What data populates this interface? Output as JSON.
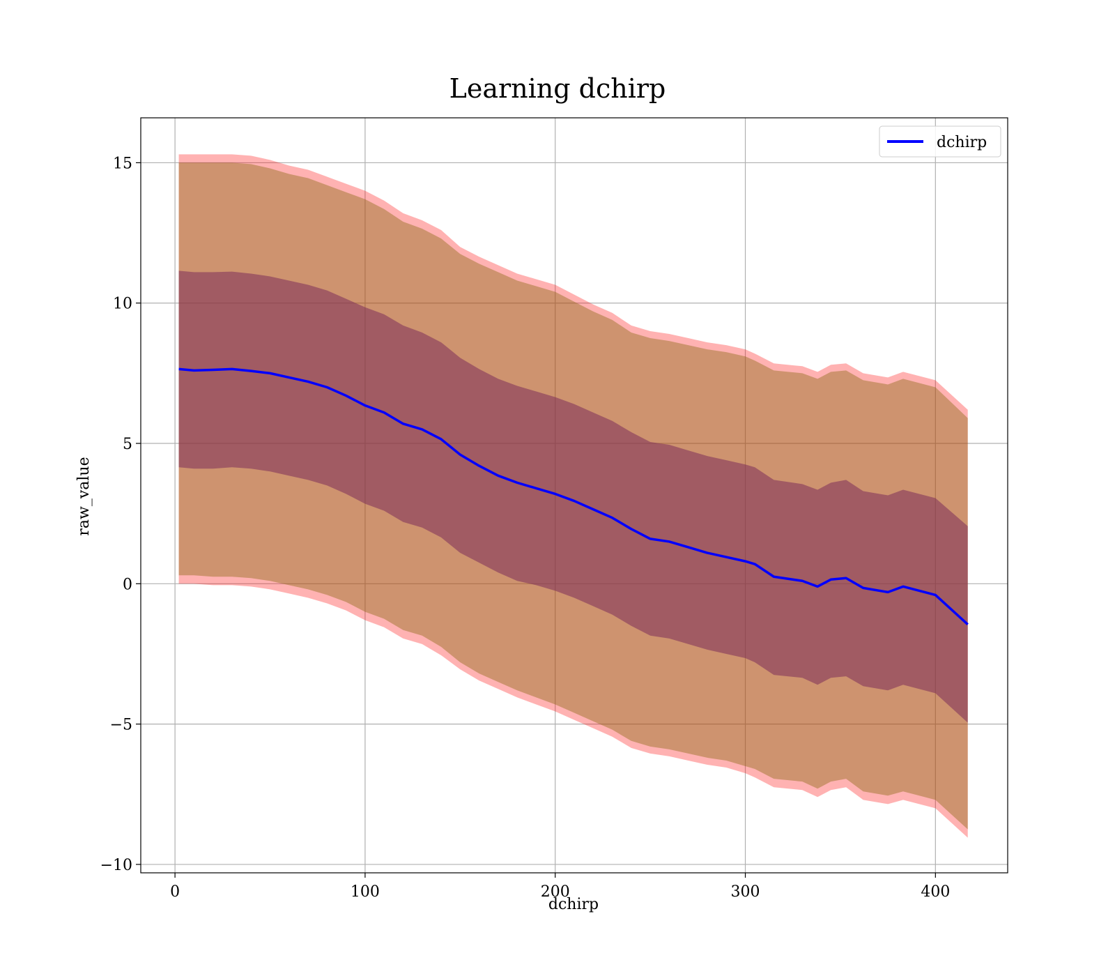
{
  "chart_data": {
    "type": "area",
    "title": "Learning dchirp",
    "xlabel": "dchirp",
    "ylabel": "raw_value",
    "xlim": [
      -18,
      438
    ],
    "ylim": [
      -10.3,
      16.6
    ],
    "xticks": [
      0,
      100,
      200,
      300,
      400
    ],
    "yticks": [
      -10,
      -5,
      0,
      5,
      10,
      15
    ],
    "xtick_labels": [
      "0",
      "100",
      "200",
      "300",
      "400"
    ],
    "ytick_labels": [
      "−10",
      "−5",
      "0",
      "5",
      "10",
      "15"
    ],
    "grid": true,
    "legend": {
      "position": "top-right",
      "entries": [
        "dchirp"
      ]
    },
    "colors": {
      "line": "#0000ff",
      "outer_band": "#ff0000",
      "middle_band": "#8b6914",
      "inner_band": "#7b2d5a",
      "grid": "#b0b0b0"
    },
    "x": [
      2,
      10,
      20,
      30,
      40,
      50,
      60,
      70,
      80,
      90,
      100,
      110,
      120,
      130,
      140,
      150,
      160,
      170,
      180,
      190,
      200,
      210,
      220,
      230,
      240,
      250,
      260,
      270,
      280,
      290,
      300,
      305,
      315,
      330,
      338,
      345,
      353,
      362,
      375,
      383,
      400,
      417
    ],
    "series": [
      {
        "name": "dchirp",
        "values": [
          7.65,
          7.6,
          7.62,
          7.65,
          7.58,
          7.5,
          7.35,
          7.2,
          7.0,
          6.7,
          6.35,
          6.1,
          5.7,
          5.5,
          5.15,
          4.6,
          4.2,
          3.85,
          3.6,
          3.4,
          3.2,
          2.95,
          2.65,
          2.35,
          1.95,
          1.6,
          1.5,
          1.3,
          1.1,
          0.95,
          0.8,
          0.7,
          0.25,
          0.1,
          -0.1,
          0.15,
          0.2,
          -0.15,
          -0.3,
          -0.1,
          -0.4,
          -1.45
        ]
      }
    ],
    "bands": [
      {
        "label": "outer",
        "upper": [
          15.3,
          15.3,
          15.3,
          15.3,
          15.25,
          15.1,
          14.9,
          14.75,
          14.5,
          14.25,
          14.0,
          13.65,
          13.2,
          12.95,
          12.6,
          12.0,
          11.65,
          11.35,
          11.05,
          10.85,
          10.65,
          10.3,
          9.95,
          9.65,
          9.2,
          9.0,
          8.9,
          8.75,
          8.6,
          8.5,
          8.35,
          8.2,
          7.85,
          7.75,
          7.55,
          7.8,
          7.85,
          7.5,
          7.35,
          7.55,
          7.25,
          6.2
        ],
        "lower": [
          0.0,
          0.0,
          -0.05,
          -0.05,
          -0.1,
          -0.2,
          -0.35,
          -0.5,
          -0.7,
          -0.95,
          -1.3,
          -1.55,
          -1.95,
          -2.15,
          -2.55,
          -3.05,
          -3.45,
          -3.75,
          -4.05,
          -4.3,
          -4.55,
          -4.85,
          -5.15,
          -5.45,
          -5.85,
          -6.05,
          -6.15,
          -6.3,
          -6.45,
          -6.55,
          -6.75,
          -6.9,
          -7.25,
          -7.35,
          -7.6,
          -7.35,
          -7.25,
          -7.7,
          -7.85,
          -7.7,
          -8.0,
          -9.05
        ]
      },
      {
        "label": "middle",
        "upper": [
          15.0,
          15.0,
          15.0,
          15.0,
          14.95,
          14.8,
          14.6,
          14.45,
          14.2,
          13.95,
          13.7,
          13.35,
          12.9,
          12.65,
          12.3,
          11.75,
          11.4,
          11.1,
          10.8,
          10.6,
          10.4,
          10.05,
          9.7,
          9.4,
          8.95,
          8.75,
          8.65,
          8.5,
          8.35,
          8.25,
          8.1,
          7.95,
          7.6,
          7.5,
          7.3,
          7.55,
          7.6,
          7.25,
          7.1,
          7.3,
          7.0,
          5.9
        ],
        "lower": [
          0.3,
          0.3,
          0.25,
          0.25,
          0.2,
          0.1,
          -0.05,
          -0.2,
          -0.4,
          -0.65,
          -1.0,
          -1.25,
          -1.65,
          -1.85,
          -2.25,
          -2.8,
          -3.2,
          -3.5,
          -3.8,
          -4.05,
          -4.3,
          -4.6,
          -4.9,
          -5.2,
          -5.6,
          -5.8,
          -5.9,
          -6.05,
          -6.2,
          -6.3,
          -6.5,
          -6.6,
          -6.95,
          -7.05,
          -7.3,
          -7.05,
          -6.95,
          -7.4,
          -7.55,
          -7.4,
          -7.7,
          -8.75
        ]
      },
      {
        "label": "inner",
        "upper": [
          11.15,
          11.1,
          11.1,
          11.12,
          11.05,
          10.95,
          10.8,
          10.65,
          10.45,
          10.15,
          9.85,
          9.6,
          9.2,
          8.95,
          8.6,
          8.05,
          7.65,
          7.3,
          7.05,
          6.85,
          6.65,
          6.4,
          6.1,
          5.8,
          5.4,
          5.05,
          4.95,
          4.75,
          4.55,
          4.4,
          4.25,
          4.15,
          3.7,
          3.55,
          3.35,
          3.6,
          3.7,
          3.3,
          3.15,
          3.35,
          3.05,
          2.05
        ],
        "lower": [
          4.15,
          4.1,
          4.1,
          4.15,
          4.1,
          4.0,
          3.85,
          3.7,
          3.5,
          3.2,
          2.85,
          2.6,
          2.2,
          2.0,
          1.65,
          1.1,
          0.75,
          0.4,
          0.1,
          -0.05,
          -0.25,
          -0.5,
          -0.8,
          -1.1,
          -1.5,
          -1.85,
          -1.95,
          -2.15,
          -2.35,
          -2.5,
          -2.65,
          -2.8,
          -3.25,
          -3.35,
          -3.6,
          -3.35,
          -3.3,
          -3.65,
          -3.8,
          -3.6,
          -3.9,
          -4.95
        ]
      }
    ]
  }
}
